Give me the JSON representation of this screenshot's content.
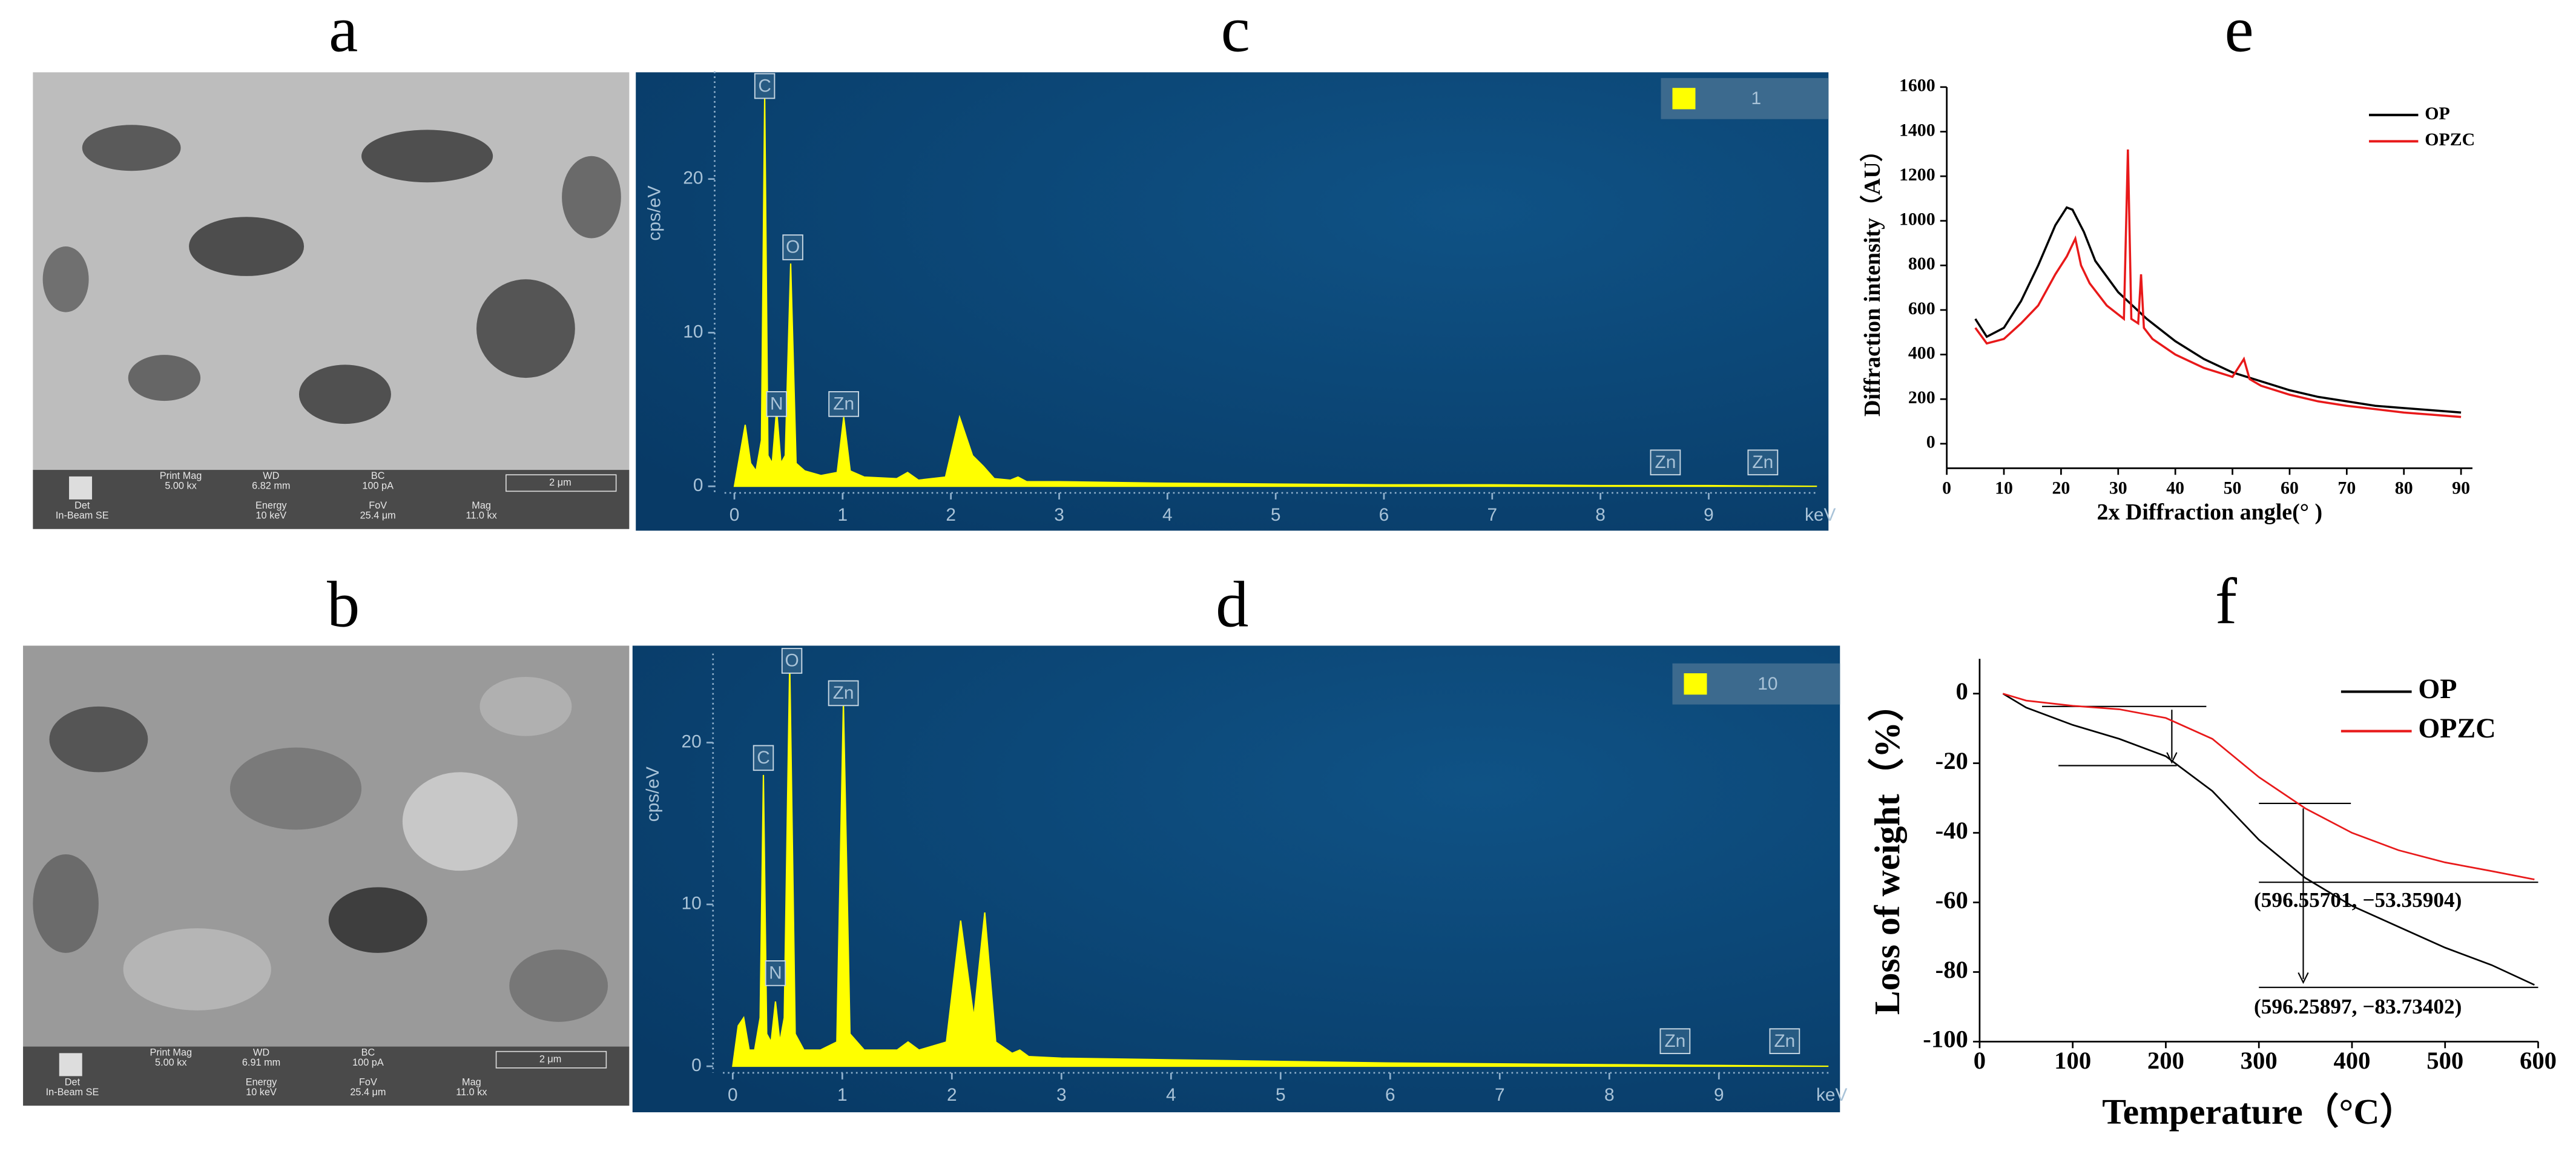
{
  "panel_labels": [
    "a",
    "b",
    "c",
    "d",
    "e",
    "f"
  ],
  "sem_images": [
    {
      "info": [
        {
          "label": "Print Mag",
          "value": "5.00 kx"
        },
        {
          "label": "WD",
          "value": "6.82 mm"
        },
        {
          "label": "BC",
          "value": "100 pA"
        },
        {
          "label": "Det",
          "value": "In-Beam SE"
        },
        {
          "label": "Energy",
          "value": "10 keV"
        },
        {
          "label": "FoV",
          "value": "25.4 μm"
        },
        {
          "label": "Mag",
          "value": "11.0 kx"
        }
      ],
      "scale_bar": "2 μm"
    },
    {
      "info": [
        {
          "label": "Print Mag",
          "value": "5.00 kx"
        },
        {
          "label": "WD",
          "value": "6.91 mm"
        },
        {
          "label": "BC",
          "value": "100 pA"
        },
        {
          "label": "Det",
          "value": "In-Beam SE"
        },
        {
          "label": "Energy",
          "value": "10 keV"
        },
        {
          "label": "FoV",
          "value": "25.4 μm"
        },
        {
          "label": "Mag",
          "value": "11.0 kx"
        }
      ],
      "scale_bar": "2 μm"
    }
  ],
  "chart_data": [
    {
      "type": "spectrum",
      "x_label": "keV",
      "y_label": "cps/eV",
      "xlim": [
        0,
        10
      ],
      "ylim": [
        0,
        27
      ],
      "xticks": [
        0,
        1,
        2,
        3,
        4,
        5,
        6,
        7,
        8,
        9
      ],
      "yticks": [
        0,
        10,
        20
      ],
      "x": [
        0,
        0.05,
        0.1,
        0.15,
        0.2,
        0.25,
        0.28,
        0.31,
        0.35,
        0.39,
        0.43,
        0.47,
        0.52,
        0.57,
        0.65,
        0.8,
        0.95,
        1.01,
        1.07,
        1.2,
        1.5,
        1.6,
        1.7,
        1.95,
        2.08,
        2.2,
        2.3,
        2.4,
        2.55,
        2.62,
        2.7,
        3,
        4,
        5,
        6,
        7,
        8,
        9,
        10
      ],
      "series": [
        {
          "name": "1",
          "color": "#ffff00",
          "values": [
            0,
            2,
            4,
            1.5,
            1,
            3,
            25.5,
            2,
            1.5,
            5,
            1.5,
            2,
            14.5,
            1.5,
            1,
            0.7,
            0.9,
            4.5,
            1,
            0.6,
            0.5,
            0.9,
            0.4,
            0.6,
            4.5,
            2,
            1.3,
            0.5,
            0.4,
            0.6,
            0.3,
            0.3,
            0.2,
            0.15,
            0.1,
            0.1,
            0.05,
            0.05,
            0
          ]
        }
      ],
      "peak_labels": [
        {
          "text": "C",
          "x": 0.28,
          "y": 26
        },
        {
          "text": "N",
          "x": 0.39,
          "y": 5.3
        },
        {
          "text": "O",
          "x": 0.54,
          "y": 15.5
        },
        {
          "text": "Zn",
          "x": 1.01,
          "y": 5.3
        },
        {
          "text": "Zn",
          "x": 8.6,
          "y": 1.5
        },
        {
          "text": "Zn",
          "x": 9.5,
          "y": 1.5
        }
      ]
    },
    {
      "type": "spectrum",
      "x_label": "keV",
      "y_label": "cps/eV",
      "xlim": [
        0,
        10
      ],
      "ylim": [
        0,
        25.5
      ],
      "xticks": [
        0,
        1,
        2,
        3,
        4,
        5,
        6,
        7,
        8,
        9
      ],
      "yticks": [
        0,
        10,
        20
      ],
      "x": [
        0,
        0.05,
        0.1,
        0.15,
        0.2,
        0.25,
        0.28,
        0.31,
        0.35,
        0.39,
        0.43,
        0.47,
        0.52,
        0.57,
        0.65,
        0.8,
        0.95,
        1.01,
        1.07,
        1.2,
        1.5,
        1.6,
        1.7,
        1.95,
        2.08,
        2.2,
        2.3,
        2.4,
        2.55,
        2.62,
        2.7,
        3,
        4,
        5,
        6,
        7,
        8,
        9,
        10
      ],
      "series": [
        {
          "name": "10",
          "color": "#ffff00",
          "values": [
            0,
            2.5,
            3,
            1,
            1,
            3,
            18,
            2,
            1.5,
            4,
            1.5,
            3,
            25,
            2,
            1,
            1,
            1.5,
            22.5,
            2,
            1,
            1,
            1.5,
            1,
            1.5,
            9,
            3,
            9.5,
            1.5,
            0.8,
            1,
            0.6,
            0.5,
            0.4,
            0.3,
            0.2,
            0.15,
            0.1,
            0.05,
            0
          ]
        }
      ],
      "peak_labels": [
        {
          "text": "C",
          "x": 0.28,
          "y": 19
        },
        {
          "text": "N",
          "x": 0.39,
          "y": 5.7
        },
        {
          "text": "O",
          "x": 0.54,
          "y": 25
        },
        {
          "text": "Zn",
          "x": 1.01,
          "y": 23
        },
        {
          "text": "Zn",
          "x": 8.6,
          "y": 1.5
        },
        {
          "text": "Zn",
          "x": 9.6,
          "y": 1.5
        }
      ]
    },
    {
      "type": "line",
      "x_label": "2x Diffraction angle(°  )",
      "y_label": "Diffraction intensity（AU）",
      "xlim": [
        0,
        92
      ],
      "ylim": [
        -110,
        1600
      ],
      "xticks": [
        0,
        10,
        20,
        30,
        40,
        50,
        60,
        70,
        80,
        90
      ],
      "yticks": [
        0,
        200,
        400,
        600,
        800,
        1000,
        1200,
        1400,
        1600
      ],
      "legend": "upper right",
      "series": [
        {
          "name": "OP",
          "color": "#000000",
          "x": [
            5,
            7,
            10,
            13,
            16,
            19,
            21,
            22,
            24,
            26,
            30,
            35,
            40,
            45,
            50,
            55,
            60,
            65,
            70,
            75,
            80,
            85,
            90
          ],
          "values": [
            560,
            480,
            520,
            640,
            800,
            980,
            1060,
            1050,
            950,
            820,
            680,
            560,
            460,
            380,
            320,
            280,
            240,
            210,
            190,
            170,
            160,
            150,
            140
          ]
        },
        {
          "name": "OPZC",
          "color": "#e8191a",
          "x": [
            5,
            7,
            10,
            13,
            16,
            19,
            21,
            22.5,
            23.5,
            25,
            28,
            30,
            31,
            31.7,
            32.3,
            33.5,
            34,
            34.5,
            36,
            40,
            45,
            50,
            52,
            53,
            55,
            60,
            65,
            70,
            75,
            80,
            85,
            90
          ],
          "values": [
            520,
            450,
            470,
            540,
            620,
            760,
            840,
            920,
            800,
            720,
            620,
            580,
            560,
            1320,
            560,
            540,
            760,
            520,
            470,
            400,
            340,
            300,
            380,
            290,
            260,
            220,
            190,
            170,
            155,
            140,
            130,
            120
          ]
        }
      ]
    },
    {
      "type": "line",
      "x_label": "Temperature（°C）",
      "y_label": "Loss of weight（%）",
      "xlim": [
        0,
        600
      ],
      "ylim": [
        -100,
        10
      ],
      "xticks": [
        0,
        100,
        200,
        300,
        400,
        500,
        600
      ],
      "yticks": [
        -100,
        -80,
        -60,
        -40,
        -20,
        0
      ],
      "legend": "upper right",
      "series": [
        {
          "name": "OP",
          "color": "#000000",
          "x": [
            25,
            50,
            100,
            150,
            200,
            250,
            300,
            350,
            400,
            450,
            500,
            550,
            596
          ],
          "values": [
            0,
            -4,
            -9,
            -13,
            -18,
            -28,
            -42,
            -53,
            -61,
            -67,
            -73,
            -78,
            -83.7
          ]
        },
        {
          "name": "OPZC",
          "color": "#e8191a",
          "x": [
            25,
            50,
            100,
            150,
            200,
            250,
            300,
            350,
            400,
            450,
            500,
            550,
            596
          ],
          "values": [
            0,
            -2,
            -3.5,
            -4.5,
            -7,
            -13,
            -24,
            -33,
            -40,
            -45,
            -48.5,
            -51,
            -53.4
          ]
        }
      ],
      "annotations": [
        "(596.55701, −53.35904)",
        "(596.25897, −83.73402)"
      ]
    }
  ]
}
